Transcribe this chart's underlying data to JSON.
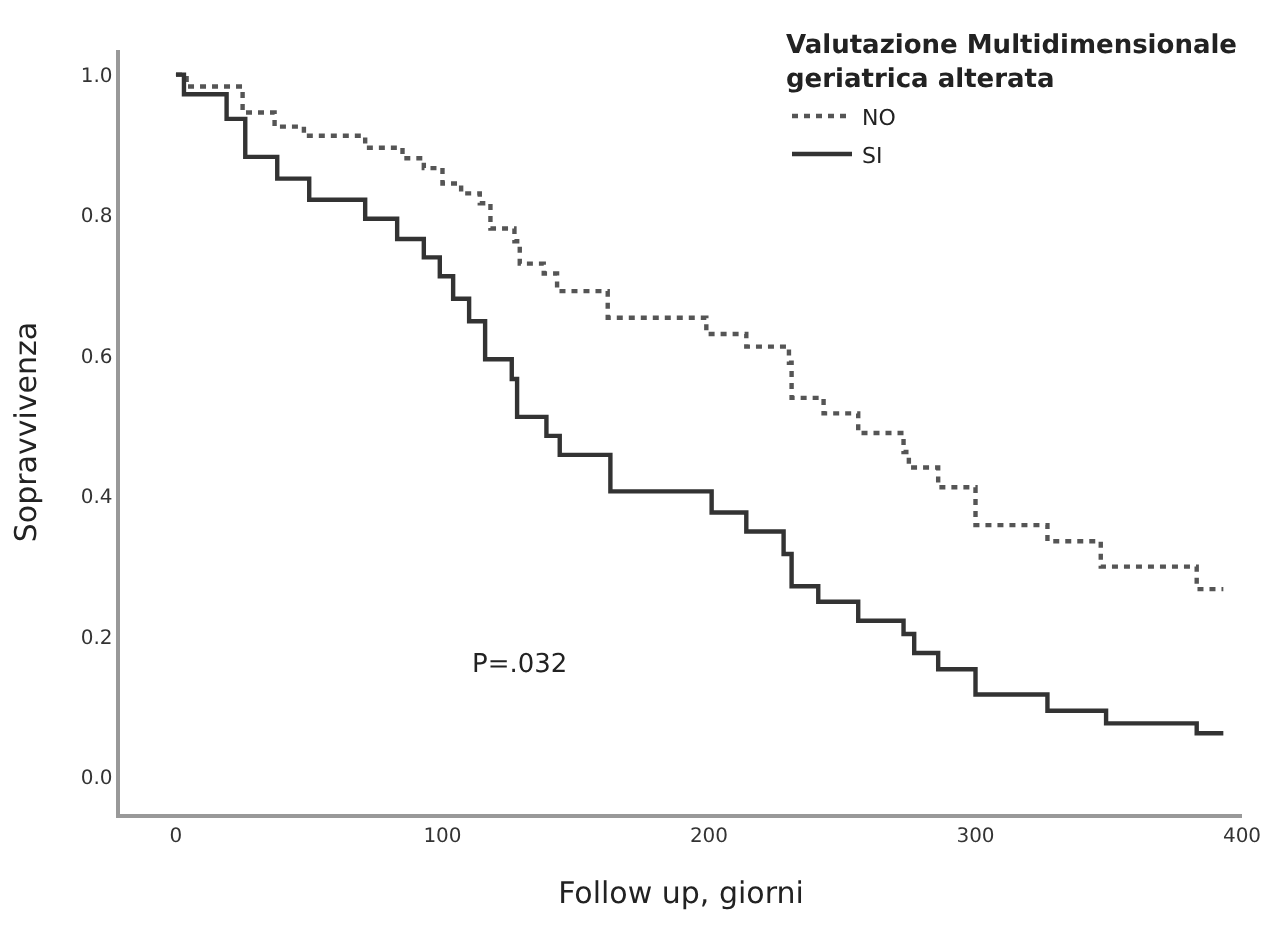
{
  "chart_data": {
    "type": "step",
    "xlabel": "Follow up, giorni",
    "ylabel": "Sopravvivenza",
    "legend_title": "Valutazione Multidimensionale\ngeriatrica alterata",
    "legend": "top right",
    "marker": "none",
    "xlim": [
      -21,
      400
    ],
    "xticks": [
      0,
      100,
      200,
      300,
      400
    ],
    "ylim": [
      -0.052,
      1.035
    ],
    "yticks": [
      {
        "value": 0,
        "label": "0.0"
      },
      {
        "value": 0.2,
        "label": "0.2"
      },
      {
        "value": 0.4,
        "label": "0.4"
      },
      {
        "value": 0.6,
        "label": "0.6"
      },
      {
        "value": 0.8,
        "label": "0.8"
      },
      {
        "value": 1,
        "label": "1.0"
      }
    ],
    "annotations": [
      "P=.032"
    ],
    "series": [
      {
        "name": "NO",
        "color": "#555555",
        "line_style": "dotted",
        "x": [
          0,
          4,
          25,
          37,
          48,
          71,
          85,
          93,
          100,
          107,
          114,
          118,
          127,
          129,
          138,
          143,
          162,
          199,
          214,
          230,
          231,
          243,
          256,
          273,
          275,
          286,
          300,
          327,
          347,
          383,
          393
        ],
        "values": [
          1.0,
          0.983,
          0.946,
          0.926,
          0.913,
          0.896,
          0.881,
          0.867,
          0.845,
          0.831,
          0.817,
          0.781,
          0.763,
          0.731,
          0.717,
          0.692,
          0.654,
          0.631,
          0.613,
          0.59,
          0.54,
          0.518,
          0.49,
          0.463,
          0.441,
          0.413,
          0.359,
          0.336,
          0.3,
          0.268,
          0.268
        ]
      },
      {
        "name": "SI",
        "color": "#333333",
        "line_style": "solid",
        "x": [
          0,
          3,
          19,
          26,
          38,
          50,
          71,
          83,
          93,
          99,
          104,
          110,
          116,
          126,
          128,
          139,
          144,
          163,
          201,
          214,
          228,
          231,
          241,
          256,
          273,
          277,
          286,
          300,
          327,
          349,
          383,
          393
        ],
        "values": [
          1.0,
          0.972,
          0.937,
          0.883,
          0.852,
          0.822,
          0.795,
          0.766,
          0.74,
          0.713,
          0.681,
          0.649,
          0.595,
          0.567,
          0.513,
          0.486,
          0.459,
          0.407,
          0.377,
          0.35,
          0.318,
          0.272,
          0.25,
          0.223,
          0.204,
          0.177,
          0.154,
          0.118,
          0.095,
          0.077,
          0.063,
          0.063
        ]
      }
    ]
  }
}
